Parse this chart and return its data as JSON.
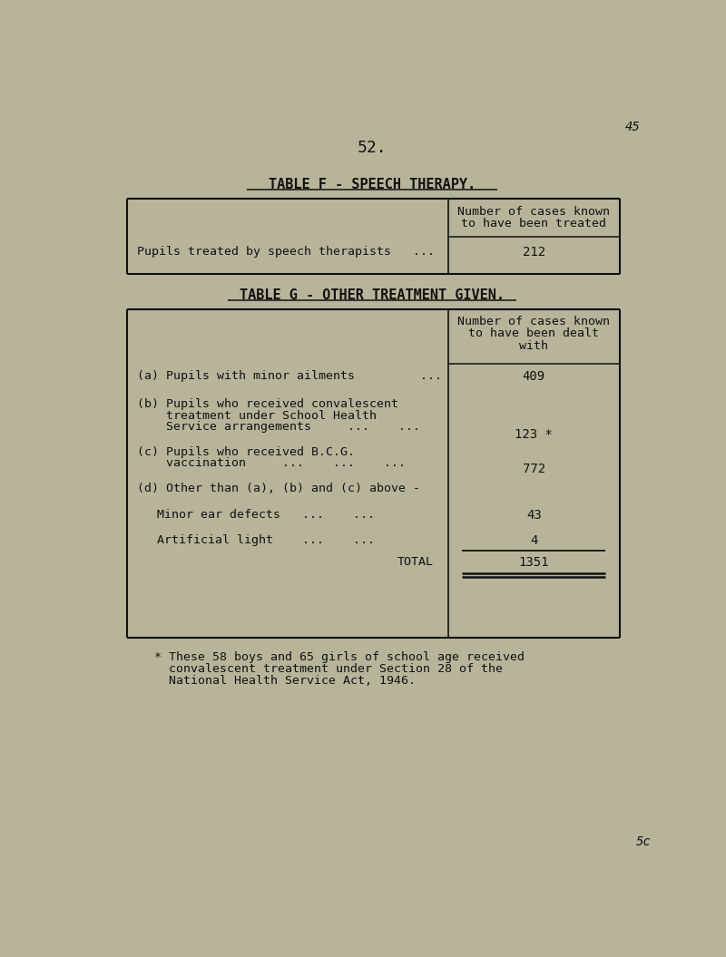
{
  "bg_color": "#b8b49a",
  "page_number": "52.",
  "corner_number": "45",
  "bottom_corner": "5c",
  "table_f_title": "TABLE F - SPEECH THERAPY.",
  "table_f_header_line1": "Number of cases known",
  "table_f_header_line2": "to have been treated",
  "table_f_row_label": "Pupils treated by speech therapists   ...",
  "table_f_row_value": "212",
  "table_g_title": "TABLE G - OTHER TREATMENT GIVEN.",
  "table_g_header_line1": "Number of cases known",
  "table_g_header_line2": "to have been dealt",
  "table_g_header_line3": "with",
  "text_color": "#111111",
  "table_line_color": "#111111",
  "underline_color": "#111111",
  "font_family": "DejaVu Sans Mono",
  "footnote_line1": "* These 58 boys and 65 girls of school age received",
  "footnote_line2": "  convalescent treatment under Section 28 of the",
  "footnote_line3": "  National Health Service Act, 1946."
}
